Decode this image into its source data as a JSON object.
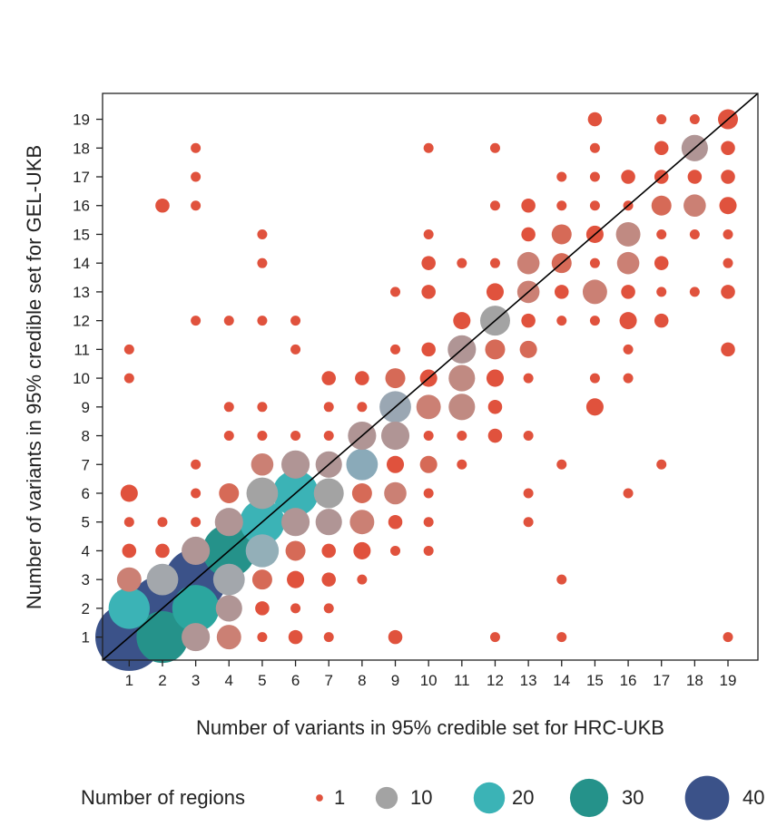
{
  "chart_data": {
    "type": "scatter",
    "subtype": "bubble",
    "title": "",
    "xlabel": "Number of variants in 95% credible set for HRC-UKB",
    "ylabel": "Number of variants in 95% credible set for GEL-UKB",
    "xlim": [
      0.2,
      19.9
    ],
    "ylim": [
      0.2,
      19.9
    ],
    "x_ticks": [
      1,
      2,
      3,
      4,
      5,
      6,
      7,
      8,
      9,
      10,
      11,
      12,
      13,
      14,
      15,
      16,
      17,
      18,
      19
    ],
    "y_ticks": [
      1,
      2,
      3,
      4,
      5,
      6,
      7,
      8,
      9,
      10,
      11,
      12,
      13,
      14,
      15,
      16,
      17,
      18,
      19
    ],
    "grid": false,
    "reference_line": "y = x",
    "size_measure": "Number of regions",
    "legend": {
      "title": "Number of regions",
      "placement": "bottom",
      "entries": [
        {
          "label": "1",
          "value": 1,
          "color": "#E0523D"
        },
        {
          "label": "10",
          "value": 10,
          "color": "#A3A3A3"
        },
        {
          "label": "20",
          "value": 20,
          "color": "#3BB3B6"
        },
        {
          "label": "30",
          "value": 30,
          "color": "#25928A"
        },
        {
          "label": "40",
          "value": 40,
          "color": "#3B5289"
        }
      ]
    },
    "colors": {
      "low": "#E0523D",
      "mid": "#A3A3A3",
      "mid_blue": "#8AAAB9",
      "cyan": "#3BB3B6",
      "teal": "#25928A",
      "navy": "#3B5289",
      "reference_line": "#000000"
    },
    "points": [
      {
        "x": 1,
        "y": 1,
        "n": 46,
        "c": "#3B5289"
      },
      {
        "x": 2,
        "y": 1,
        "n": 27,
        "c": "#25928A"
      },
      {
        "x": 3,
        "y": 1,
        "n": 8,
        "c": "#B09595"
      },
      {
        "x": 4,
        "y": 1,
        "n": 6,
        "c": "#CB8074"
      },
      {
        "x": 5,
        "y": 1,
        "n": 1,
        "c": "#E0523D"
      },
      {
        "x": 6,
        "y": 1,
        "n": 2,
        "c": "#E0523D"
      },
      {
        "x": 7,
        "y": 1,
        "n": 1,
        "c": "#E0523D"
      },
      {
        "x": 9,
        "y": 1,
        "n": 2,
        "c": "#E0523D"
      },
      {
        "x": 12,
        "y": 1,
        "n": 1,
        "c": "#E0523D"
      },
      {
        "x": 14,
        "y": 1,
        "n": 1,
        "c": "#E0523D"
      },
      {
        "x": 19,
        "y": 1,
        "n": 1,
        "c": "#E0523D"
      },
      {
        "x": 1,
        "y": 2,
        "n": 17,
        "c": "#3BB3B6"
      },
      {
        "x": 2,
        "y": 2,
        "n": 44,
        "c": "#3B5289"
      },
      {
        "x": 3,
        "y": 2,
        "n": 22,
        "c": "#2BA69F"
      },
      {
        "x": 4,
        "y": 2,
        "n": 7,
        "c": "#B09595"
      },
      {
        "x": 5,
        "y": 2,
        "n": 2,
        "c": "#E0523D"
      },
      {
        "x": 6,
        "y": 2,
        "n": 1,
        "c": "#E0523D"
      },
      {
        "x": 7,
        "y": 2,
        "n": 1,
        "c": "#E0523D"
      },
      {
        "x": 1,
        "y": 3,
        "n": 6,
        "c": "#CB8074"
      },
      {
        "x": 2,
        "y": 3,
        "n": 10,
        "c": "#A3A7AC"
      },
      {
        "x": 3,
        "y": 3,
        "n": 38,
        "c": "#3B5289"
      },
      {
        "x": 4,
        "y": 3,
        "n": 10,
        "c": "#A3A7AC"
      },
      {
        "x": 5,
        "y": 3,
        "n": 4,
        "c": "#D66A57"
      },
      {
        "x": 6,
        "y": 3,
        "n": 3,
        "c": "#E0523D"
      },
      {
        "x": 7,
        "y": 3,
        "n": 2,
        "c": "#E0523D"
      },
      {
        "x": 8,
        "y": 3,
        "n": 1,
        "c": "#E0523D"
      },
      {
        "x": 14,
        "y": 3,
        "n": 1,
        "c": "#E0523D"
      },
      {
        "x": 1,
        "y": 4,
        "n": 2,
        "c": "#E0523D"
      },
      {
        "x": 2,
        "y": 4,
        "n": 2,
        "c": "#E0523D"
      },
      {
        "x": 3,
        "y": 4,
        "n": 8,
        "c": "#B09595"
      },
      {
        "x": 4,
        "y": 4,
        "n": 28,
        "c": "#25928A"
      },
      {
        "x": 5,
        "y": 4,
        "n": 11,
        "c": "#93AFB8"
      },
      {
        "x": 6,
        "y": 4,
        "n": 4,
        "c": "#D66A57"
      },
      {
        "x": 7,
        "y": 4,
        "n": 2,
        "c": "#E0523D"
      },
      {
        "x": 8,
        "y": 4,
        "n": 3,
        "c": "#E0523D"
      },
      {
        "x": 9,
        "y": 4,
        "n": 1,
        "c": "#E0523D"
      },
      {
        "x": 10,
        "y": 4,
        "n": 1,
        "c": "#E0523D"
      },
      {
        "x": 1,
        "y": 5,
        "n": 1,
        "c": "#E0523D"
      },
      {
        "x": 2,
        "y": 5,
        "n": 1,
        "c": "#E0523D"
      },
      {
        "x": 3,
        "y": 5,
        "n": 1,
        "c": "#E0523D"
      },
      {
        "x": 4,
        "y": 5,
        "n": 8,
        "c": "#B09595"
      },
      {
        "x": 5,
        "y": 5,
        "n": 20,
        "c": "#3BB3B6"
      },
      {
        "x": 6,
        "y": 5,
        "n": 8,
        "c": "#B09595"
      },
      {
        "x": 7,
        "y": 5,
        "n": 7,
        "c": "#B09595"
      },
      {
        "x": 8,
        "y": 5,
        "n": 6,
        "c": "#CB8074"
      },
      {
        "x": 9,
        "y": 5,
        "n": 2,
        "c": "#E0523D"
      },
      {
        "x": 10,
        "y": 5,
        "n": 1,
        "c": "#E0523D"
      },
      {
        "x": 13,
        "y": 5,
        "n": 1,
        "c": "#E0523D"
      },
      {
        "x": 1,
        "y": 6,
        "n": 3,
        "c": "#E0523D"
      },
      {
        "x": 3,
        "y": 6,
        "n": 1,
        "c": "#E0523D"
      },
      {
        "x": 4,
        "y": 6,
        "n": 4,
        "c": "#D66A57"
      },
      {
        "x": 5,
        "y": 6,
        "n": 10,
        "c": "#A3A3A3"
      },
      {
        "x": 6,
        "y": 6,
        "n": 21,
        "c": "#3BB3B6"
      },
      {
        "x": 7,
        "y": 6,
        "n": 9,
        "c": "#A3A3A3"
      },
      {
        "x": 8,
        "y": 6,
        "n": 4,
        "c": "#D66A57"
      },
      {
        "x": 9,
        "y": 6,
        "n": 5,
        "c": "#CB8074"
      },
      {
        "x": 10,
        "y": 6,
        "n": 1,
        "c": "#E0523D"
      },
      {
        "x": 13,
        "y": 6,
        "n": 1,
        "c": "#E0523D"
      },
      {
        "x": 16,
        "y": 6,
        "n": 1,
        "c": "#E0523D"
      },
      {
        "x": 3,
        "y": 7,
        "n": 1,
        "c": "#E0523D"
      },
      {
        "x": 5,
        "y": 7,
        "n": 5,
        "c": "#CB8074"
      },
      {
        "x": 6,
        "y": 7,
        "n": 8,
        "c": "#B09595"
      },
      {
        "x": 7,
        "y": 7,
        "n": 7,
        "c": "#B09595"
      },
      {
        "x": 8,
        "y": 7,
        "n": 10,
        "c": "#8AAAB9"
      },
      {
        "x": 9,
        "y": 7,
        "n": 3,
        "c": "#E0523D"
      },
      {
        "x": 10,
        "y": 7,
        "n": 3,
        "c": "#D66A57"
      },
      {
        "x": 11,
        "y": 7,
        "n": 1,
        "c": "#E0523D"
      },
      {
        "x": 14,
        "y": 7,
        "n": 1,
        "c": "#E0523D"
      },
      {
        "x": 17,
        "y": 7,
        "n": 1,
        "c": "#E0523D"
      },
      {
        "x": 4,
        "y": 8,
        "n": 1,
        "c": "#E0523D"
      },
      {
        "x": 5,
        "y": 8,
        "n": 1,
        "c": "#E0523D"
      },
      {
        "x": 6,
        "y": 8,
        "n": 1,
        "c": "#E0523D"
      },
      {
        "x": 7,
        "y": 8,
        "n": 1,
        "c": "#E0523D"
      },
      {
        "x": 8,
        "y": 8,
        "n": 8,
        "c": "#B09595"
      },
      {
        "x": 9,
        "y": 8,
        "n": 8,
        "c": "#B09595"
      },
      {
        "x": 10,
        "y": 8,
        "n": 1,
        "c": "#E0523D"
      },
      {
        "x": 11,
        "y": 8,
        "n": 1,
        "c": "#E0523D"
      },
      {
        "x": 12,
        "y": 8,
        "n": 2,
        "c": "#E0523D"
      },
      {
        "x": 13,
        "y": 8,
        "n": 1,
        "c": "#E0523D"
      },
      {
        "x": 4,
        "y": 9,
        "n": 1,
        "c": "#E0523D"
      },
      {
        "x": 5,
        "y": 9,
        "n": 1,
        "c": "#E0523D"
      },
      {
        "x": 7,
        "y": 9,
        "n": 1,
        "c": "#E0523D"
      },
      {
        "x": 8,
        "y": 9,
        "n": 1,
        "c": "#E0523D"
      },
      {
        "x": 9,
        "y": 9,
        "n": 10,
        "c": "#9AA7B3"
      },
      {
        "x": 10,
        "y": 9,
        "n": 6,
        "c": "#CB8074"
      },
      {
        "x": 11,
        "y": 9,
        "n": 7,
        "c": "#C08A82"
      },
      {
        "x": 12,
        "y": 9,
        "n": 2,
        "c": "#E0523D"
      },
      {
        "x": 15,
        "y": 9,
        "n": 3,
        "c": "#E0523D"
      },
      {
        "x": 1,
        "y": 10,
        "n": 1,
        "c": "#E0523D"
      },
      {
        "x": 7,
        "y": 10,
        "n": 2,
        "c": "#E0523D"
      },
      {
        "x": 8,
        "y": 10,
        "n": 2,
        "c": "#E0523D"
      },
      {
        "x": 9,
        "y": 10,
        "n": 4,
        "c": "#D66A57"
      },
      {
        "x": 10,
        "y": 10,
        "n": 3,
        "c": "#E0523D"
      },
      {
        "x": 11,
        "y": 10,
        "n": 7,
        "c": "#C08A82"
      },
      {
        "x": 12,
        "y": 10,
        "n": 3,
        "c": "#E0523D"
      },
      {
        "x": 13,
        "y": 10,
        "n": 1,
        "c": "#E0523D"
      },
      {
        "x": 15,
        "y": 10,
        "n": 1,
        "c": "#E0523D"
      },
      {
        "x": 16,
        "y": 10,
        "n": 1,
        "c": "#E0523D"
      },
      {
        "x": 1,
        "y": 11,
        "n": 1,
        "c": "#E0523D"
      },
      {
        "x": 6,
        "y": 11,
        "n": 1,
        "c": "#E0523D"
      },
      {
        "x": 9,
        "y": 11,
        "n": 1,
        "c": "#E0523D"
      },
      {
        "x": 10,
        "y": 11,
        "n": 2,
        "c": "#E0523D"
      },
      {
        "x": 11,
        "y": 11,
        "n": 8,
        "c": "#B09595"
      },
      {
        "x": 12,
        "y": 11,
        "n": 4,
        "c": "#D66A57"
      },
      {
        "x": 13,
        "y": 11,
        "n": 3,
        "c": "#D66A57"
      },
      {
        "x": 16,
        "y": 11,
        "n": 1,
        "c": "#E0523D"
      },
      {
        "x": 19,
        "y": 11,
        "n": 2,
        "c": "#E0523D"
      },
      {
        "x": 3,
        "y": 12,
        "n": 1,
        "c": "#E0523D"
      },
      {
        "x": 4,
        "y": 12,
        "n": 1,
        "c": "#E0523D"
      },
      {
        "x": 5,
        "y": 12,
        "n": 1,
        "c": "#E0523D"
      },
      {
        "x": 6,
        "y": 12,
        "n": 1,
        "c": "#E0523D"
      },
      {
        "x": 11,
        "y": 12,
        "n": 3,
        "c": "#E0523D"
      },
      {
        "x": 12,
        "y": 12,
        "n": 9,
        "c": "#A3A3A3"
      },
      {
        "x": 13,
        "y": 12,
        "n": 2,
        "c": "#E0523D"
      },
      {
        "x": 14,
        "y": 12,
        "n": 1,
        "c": "#E0523D"
      },
      {
        "x": 15,
        "y": 12,
        "n": 1,
        "c": "#E0523D"
      },
      {
        "x": 16,
        "y": 12,
        "n": 3,
        "c": "#E0523D"
      },
      {
        "x": 17,
        "y": 12,
        "n": 2,
        "c": "#E0523D"
      },
      {
        "x": 9,
        "y": 13,
        "n": 1,
        "c": "#E0523D"
      },
      {
        "x": 10,
        "y": 13,
        "n": 2,
        "c": "#E0523D"
      },
      {
        "x": 12,
        "y": 13,
        "n": 3,
        "c": "#E0523D"
      },
      {
        "x": 13,
        "y": 13,
        "n": 5,
        "c": "#CB8074"
      },
      {
        "x": 14,
        "y": 13,
        "n": 2,
        "c": "#E0523D"
      },
      {
        "x": 15,
        "y": 13,
        "n": 6,
        "c": "#CB8074"
      },
      {
        "x": 16,
        "y": 13,
        "n": 2,
        "c": "#E0523D"
      },
      {
        "x": 17,
        "y": 13,
        "n": 1,
        "c": "#E0523D"
      },
      {
        "x": 18,
        "y": 13,
        "n": 1,
        "c": "#E0523D"
      },
      {
        "x": 19,
        "y": 13,
        "n": 2,
        "c": "#E0523D"
      },
      {
        "x": 5,
        "y": 14,
        "n": 1,
        "c": "#E0523D"
      },
      {
        "x": 10,
        "y": 14,
        "n": 2,
        "c": "#E0523D"
      },
      {
        "x": 11,
        "y": 14,
        "n": 1,
        "c": "#E0523D"
      },
      {
        "x": 12,
        "y": 14,
        "n": 1,
        "c": "#E0523D"
      },
      {
        "x": 13,
        "y": 14,
        "n": 5,
        "c": "#CB8074"
      },
      {
        "x": 14,
        "y": 14,
        "n": 4,
        "c": "#D66A57"
      },
      {
        "x": 15,
        "y": 14,
        "n": 1,
        "c": "#E0523D"
      },
      {
        "x": 16,
        "y": 14,
        "n": 5,
        "c": "#CB8074"
      },
      {
        "x": 17,
        "y": 14,
        "n": 2,
        "c": "#E0523D"
      },
      {
        "x": 19,
        "y": 14,
        "n": 1,
        "c": "#E0523D"
      },
      {
        "x": 5,
        "y": 15,
        "n": 1,
        "c": "#E0523D"
      },
      {
        "x": 10,
        "y": 15,
        "n": 1,
        "c": "#E0523D"
      },
      {
        "x": 13,
        "y": 15,
        "n": 2,
        "c": "#E0523D"
      },
      {
        "x": 14,
        "y": 15,
        "n": 4,
        "c": "#D66A57"
      },
      {
        "x": 15,
        "y": 15,
        "n": 3,
        "c": "#E0523D"
      },
      {
        "x": 16,
        "y": 15,
        "n": 6,
        "c": "#C08A82"
      },
      {
        "x": 17,
        "y": 15,
        "n": 1,
        "c": "#E0523D"
      },
      {
        "x": 18,
        "y": 15,
        "n": 1,
        "c": "#E0523D"
      },
      {
        "x": 19,
        "y": 15,
        "n": 1,
        "c": "#E0523D"
      },
      {
        "x": 2,
        "y": 16,
        "n": 2,
        "c": "#E0523D"
      },
      {
        "x": 3,
        "y": 16,
        "n": 1,
        "c": "#E0523D"
      },
      {
        "x": 12,
        "y": 16,
        "n": 1,
        "c": "#E0523D"
      },
      {
        "x": 13,
        "y": 16,
        "n": 2,
        "c": "#E0523D"
      },
      {
        "x": 14,
        "y": 16,
        "n": 1,
        "c": "#E0523D"
      },
      {
        "x": 15,
        "y": 16,
        "n": 1,
        "c": "#E0523D"
      },
      {
        "x": 16,
        "y": 16,
        "n": 1,
        "c": "#E0523D"
      },
      {
        "x": 17,
        "y": 16,
        "n": 4,
        "c": "#D66A57"
      },
      {
        "x": 18,
        "y": 16,
        "n": 5,
        "c": "#CB8074"
      },
      {
        "x": 19,
        "y": 16,
        "n": 3,
        "c": "#E0523D"
      },
      {
        "x": 3,
        "y": 17,
        "n": 1,
        "c": "#E0523D"
      },
      {
        "x": 14,
        "y": 17,
        "n": 1,
        "c": "#E0523D"
      },
      {
        "x": 15,
        "y": 17,
        "n": 1,
        "c": "#E0523D"
      },
      {
        "x": 16,
        "y": 17,
        "n": 2,
        "c": "#E0523D"
      },
      {
        "x": 17,
        "y": 17,
        "n": 2,
        "c": "#E0523D"
      },
      {
        "x": 18,
        "y": 17,
        "n": 2,
        "c": "#E0523D"
      },
      {
        "x": 19,
        "y": 17,
        "n": 2,
        "c": "#E0523D"
      },
      {
        "x": 3,
        "y": 18,
        "n": 1,
        "c": "#E0523D"
      },
      {
        "x": 10,
        "y": 18,
        "n": 1,
        "c": "#E0523D"
      },
      {
        "x": 12,
        "y": 18,
        "n": 1,
        "c": "#E0523D"
      },
      {
        "x": 15,
        "y": 18,
        "n": 1,
        "c": "#E0523D"
      },
      {
        "x": 17,
        "y": 18,
        "n": 2,
        "c": "#E0523D"
      },
      {
        "x": 18,
        "y": 18,
        "n": 7,
        "c": "#B09595"
      },
      {
        "x": 19,
        "y": 18,
        "n": 2,
        "c": "#E0523D"
      },
      {
        "x": 15,
        "y": 19,
        "n": 2,
        "c": "#E0523D"
      },
      {
        "x": 17,
        "y": 19,
        "n": 1,
        "c": "#E0523D"
      },
      {
        "x": 18,
        "y": 19,
        "n": 1,
        "c": "#E0523D"
      },
      {
        "x": 19,
        "y": 19,
        "n": 4,
        "c": "#E0523D"
      }
    ]
  }
}
